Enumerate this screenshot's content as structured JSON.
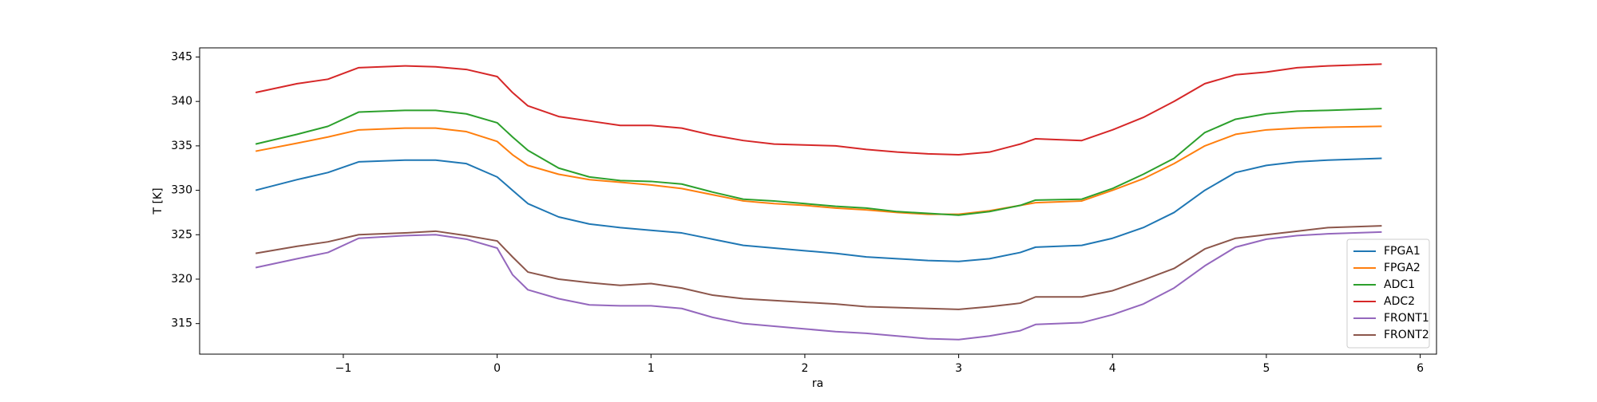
{
  "chart_data": {
    "type": "line",
    "x_label": "ra",
    "y_label": "T [K]",
    "x": [
      -1.57,
      -1.3,
      -1.1,
      -0.9,
      -0.6,
      -0.4,
      -0.2,
      0,
      0.1,
      0.2,
      0.4,
      0.6,
      0.8,
      1.0,
      1.2,
      1.4,
      1.6,
      1.8,
      2.0,
      2.2,
      2.4,
      2.6,
      2.8,
      3.0,
      3.2,
      3.4,
      3.5,
      3.8,
      4.0,
      4.2,
      4.4,
      4.6,
      4.8,
      5.0,
      5.2,
      5.4,
      5.75
    ],
    "series": [
      {
        "name": "FPGA1",
        "color": "#1f77b4",
        "values": [
          330.0,
          331.2,
          332.0,
          333.2,
          333.4,
          333.4,
          333.0,
          331.5,
          330,
          328.5,
          327,
          326.2,
          325.8,
          325.5,
          325.2,
          324.5,
          323.8,
          323.5,
          323.2,
          322.9,
          322.5,
          322.3,
          322.1,
          322.0,
          322.3,
          323.0,
          323.6,
          323.8,
          324.6,
          325.8,
          327.5,
          330,
          332,
          332.8,
          333.2,
          333.4,
          333.6
        ]
      },
      {
        "name": "FPGA2",
        "color": "#ff7f0e",
        "values": [
          334.4,
          335.3,
          336.0,
          336.8,
          337.0,
          337.0,
          336.6,
          335.5,
          334,
          332.8,
          331.8,
          331.2,
          330.9,
          330.6,
          330.2,
          329.5,
          328.8,
          328.5,
          328.3,
          328.0,
          327.8,
          327.5,
          327.3,
          327.3,
          327.7,
          328.3,
          328.6,
          328.8,
          330,
          331.3,
          333,
          335,
          336.3,
          336.8,
          337.0,
          337.1,
          337.2
        ]
      },
      {
        "name": "ADC1",
        "color": "#2ca02c",
        "values": [
          335.2,
          336.3,
          337.2,
          338.8,
          339.0,
          339.0,
          338.6,
          337.6,
          336,
          334.5,
          332.5,
          331.5,
          331.1,
          331.0,
          330.7,
          329.8,
          329.0,
          328.8,
          328.5,
          328.2,
          328.0,
          327.6,
          327.4,
          327.2,
          327.6,
          328.3,
          328.9,
          329.0,
          330.2,
          331.8,
          333.6,
          336.5,
          338,
          338.6,
          338.9,
          339.0,
          339.2
        ]
      },
      {
        "name": "ADC2",
        "color": "#d62728",
        "values": [
          341.0,
          342.0,
          342.5,
          343.8,
          344.0,
          343.9,
          343.6,
          342.8,
          341,
          339.5,
          338.3,
          337.8,
          337.3,
          337.3,
          337.0,
          336.2,
          335.6,
          335.2,
          335.1,
          335.0,
          334.6,
          334.3,
          334.1,
          334.0,
          334.3,
          335.2,
          335.8,
          335.6,
          336.8,
          338.2,
          340,
          342,
          343,
          343.3,
          343.8,
          344.0,
          344.2
        ]
      },
      {
        "name": "FRONT1",
        "color": "#9467bd",
        "values": [
          321.3,
          322.3,
          323.0,
          324.6,
          324.9,
          325.0,
          324.5,
          323.5,
          320.5,
          318.8,
          317.8,
          317.1,
          317.0,
          317.0,
          316.7,
          315.7,
          315.0,
          314.7,
          314.4,
          314.1,
          313.9,
          313.6,
          313.3,
          313.2,
          313.6,
          314.2,
          314.9,
          315.1,
          316,
          317.2,
          319,
          321.5,
          323.6,
          324.5,
          324.9,
          325.1,
          325.3
        ]
      },
      {
        "name": "FRONT2",
        "color": "#8c564b",
        "values": [
          322.9,
          323.7,
          324.2,
          325.0,
          325.2,
          325.4,
          324.9,
          324.3,
          322.5,
          320.8,
          320.0,
          319.6,
          319.3,
          319.5,
          319.0,
          318.2,
          317.8,
          317.6,
          317.4,
          317.2,
          316.9,
          316.8,
          316.7,
          316.6,
          316.9,
          317.3,
          318.0,
          318.0,
          318.7,
          319.9,
          321.2,
          323.4,
          324.6,
          325.0,
          325.4,
          325.8,
          326.0
        ]
      }
    ],
    "xlim": [
      -1.934,
      6.106
    ],
    "ylim": [
      311.56,
      346.03
    ],
    "xticks": [
      {
        "value": -1,
        "label": "−1"
      },
      0,
      1,
      2,
      3,
      4,
      5,
      6
    ],
    "yticks": [
      315,
      320,
      325,
      330,
      335,
      340,
      345
    ],
    "grid": false,
    "legend": "lower right"
  }
}
